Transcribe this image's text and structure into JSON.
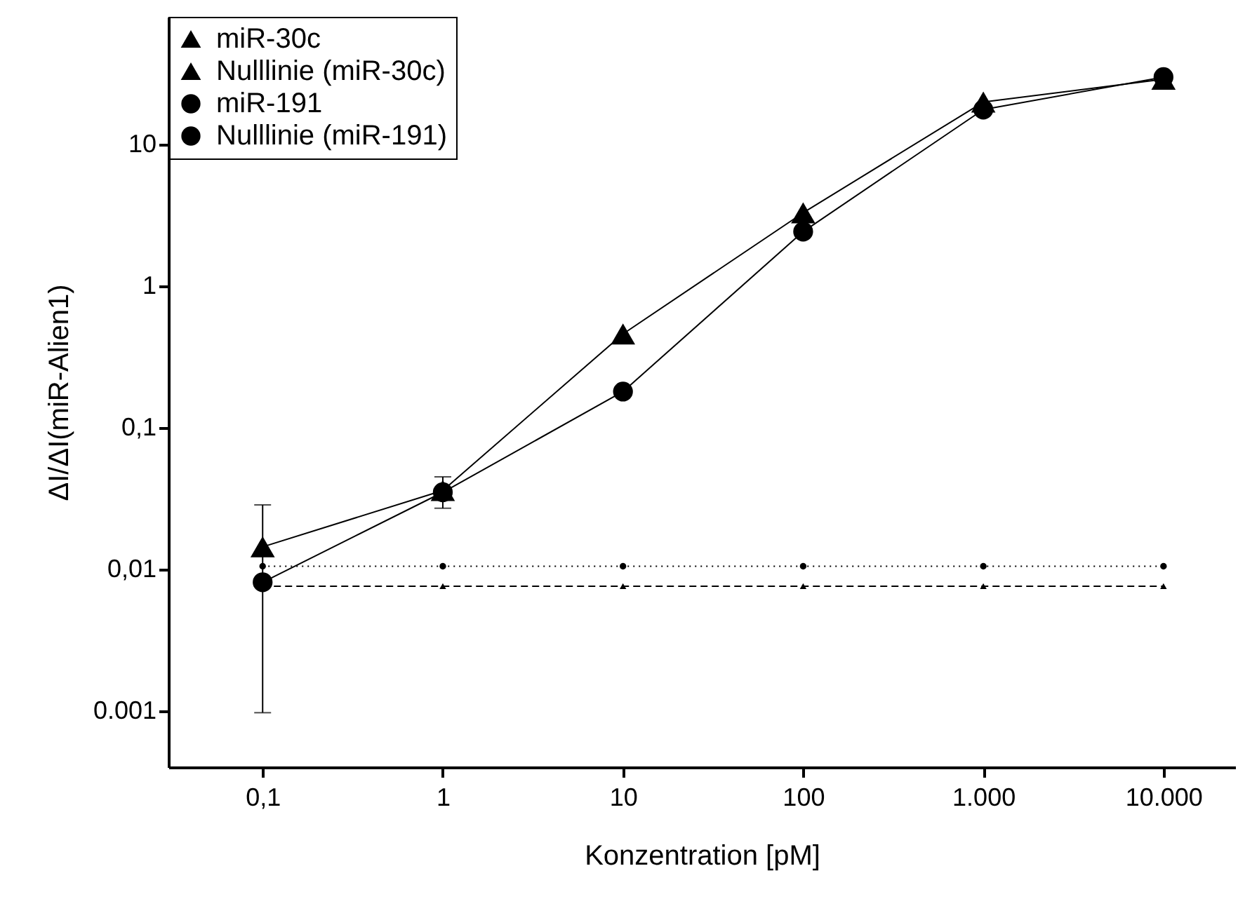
{
  "chart_data": {
    "type": "line",
    "xlabel": "Konzentration [pM]",
    "ylabel": "ΔI/ΔI(miR-Alien1)",
    "x": [
      0.1,
      1,
      10,
      100,
      1000,
      10000
    ],
    "series": [
      {
        "name": "miR-30c",
        "color": "#000000",
        "marker": "triangle",
        "line_style": "solid",
        "values": [
          0.0144,
          0.036,
          0.46,
          3.3,
          20,
          29
        ],
        "errors": [
          [
            0.00097,
            0.0285
          ],
          [
            0.027,
            0.045
          ],
          null,
          null,
          null,
          null
        ]
      },
      {
        "name": "Nulllinie (miR-30c)",
        "color": "#000000",
        "marker": "triangle",
        "line_style": "dashed",
        "values": [
          0.0076,
          0.0076,
          0.0076,
          0.0076,
          0.0076,
          0.0076
        ]
      },
      {
        "name": "miR-191",
        "color": "#000000",
        "marker": "circle",
        "line_style": "solid",
        "values": [
          0.0081,
          0.035,
          0.18,
          2.43,
          17.7,
          30
        ]
      },
      {
        "name": "Nulllinie (miR-191)",
        "color": "#000000",
        "marker": "circle",
        "line_style": "dotted",
        "values": [
          0.0105,
          0.0105,
          0.0105,
          0.0105,
          0.0105,
          0.0105
        ]
      }
    ],
    "log": "xy",
    "xlim": [
      0.03,
      25000
    ],
    "ylim": [
      0.0004,
      80
    ],
    "xticks": [
      {
        "value": 0.1,
        "label": "0,1"
      },
      1,
      10,
      100,
      {
        "value": 1000,
        "label": "1.000"
      },
      {
        "value": 10000,
        "label": "10.000"
      }
    ],
    "yticks": [
      {
        "value": 0.001,
        "label": "0.001"
      },
      {
        "value": 0.01,
        "label": "0,01"
      },
      {
        "value": 0.1,
        "label": "0,1"
      },
      1,
      10
    ],
    "grid": false,
    "legend": "top left"
  }
}
